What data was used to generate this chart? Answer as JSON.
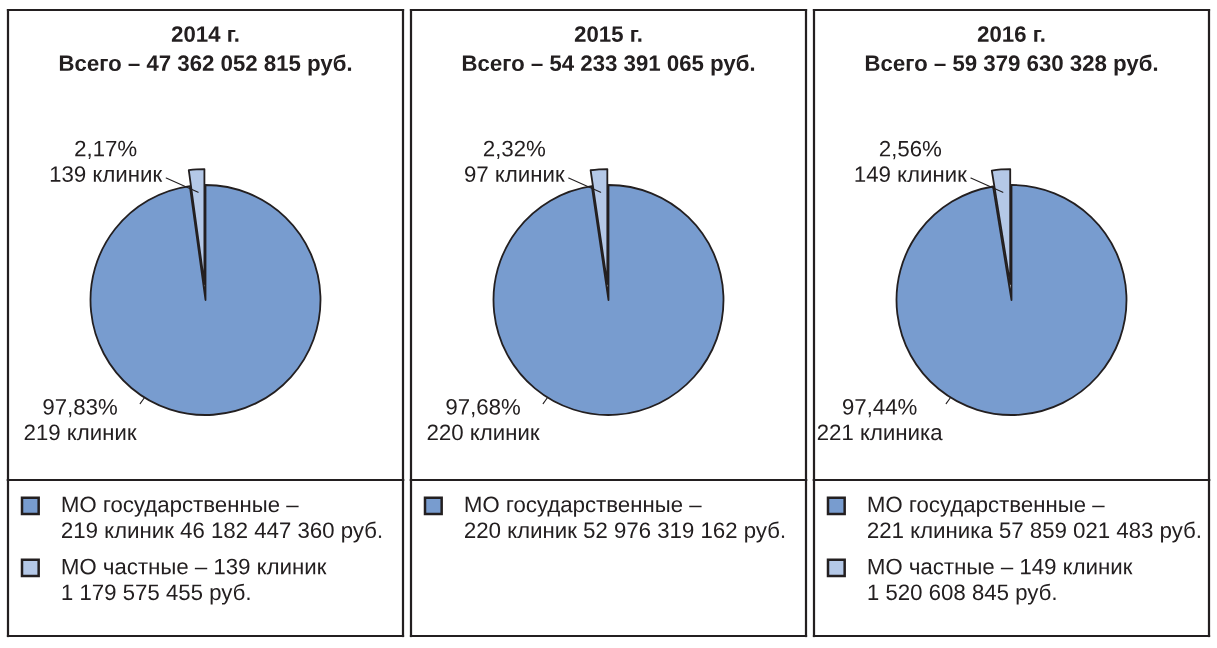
{
  "chart_data": [
    {
      "type": "pie",
      "title": "2014 г.",
      "subtitle": "Всего – 47 362 052 815 руб.",
      "categories": [
        "МО государственные –\n219 клиник 46 182 447 360 руб.",
        "МО частные – 139 клиник\n1 179 575 455 руб."
      ],
      "values": [
        97.83,
        2.17
      ],
      "colors": [
        "#789ccf",
        "#b4c8e7"
      ],
      "value_labels": [
        "97,83%\n219 клиник",
        "2,17%\n139 клиник"
      ],
      "legend": "bottom"
    },
    {
      "type": "pie",
      "title": "2015 г.",
      "subtitle": "Всего – 54 233 391 065 руб.",
      "categories": [
        "МО государственные –\n220 клиник 52 976 319 162 руб.",
        null
      ],
      "values": [
        97.68,
        2.32
      ],
      "colors": [
        "#789ccf",
        "#b4c8e7"
      ],
      "value_labels": [
        "97,68%\n220 клиник",
        "2,32%\n97 клиник"
      ],
      "legend": "bottom"
    },
    {
      "type": "pie",
      "title": "2016 г.",
      "subtitle": "Всего – 59 379 630 328 руб.",
      "categories": [
        "МО государственные –\n221 клиника 57 859 021 483 руб.",
        "МО частные – 149 клиник\n1 520 608 845 руб."
      ],
      "values": [
        97.44,
        2.56
      ],
      "colors": [
        "#789ccf",
        "#b4c8e7"
      ],
      "value_labels": [
        "97,44%\n221 клиника",
        "2,56%\n149 клиник"
      ],
      "legend": "bottom"
    }
  ]
}
